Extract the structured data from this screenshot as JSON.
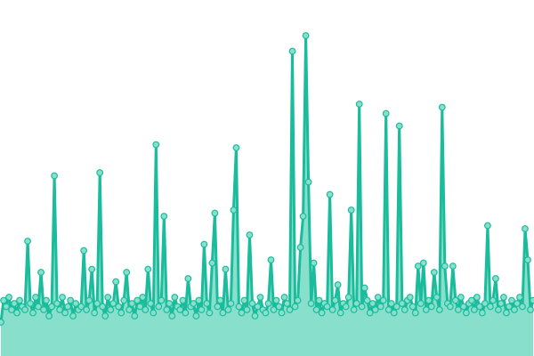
{
  "chart_data": {
    "type": "area",
    "title": "",
    "xlabel": "",
    "ylabel": "",
    "grid": false,
    "axes_visible": false,
    "markers": true,
    "ylim": [
      0,
      110
    ],
    "colors": {
      "line": "#1abc9c",
      "fill": "#88e0cc",
      "marker_fill": "#88e0cc",
      "marker_stroke": "#1abc9c"
    },
    "series": [
      {
        "values": [
          8,
          15,
          13,
          16,
          12,
          14,
          11,
          15,
          13,
          12,
          34,
          14,
          11,
          16,
          13,
          24,
          12,
          15,
          10,
          13,
          55,
          14,
          12,
          16,
          11,
          13,
          15,
          10,
          14,
          12,
          13,
          31,
          12,
          15,
          25,
          11,
          14,
          56,
          13,
          10,
          16,
          12,
          14,
          21,
          13,
          11,
          15,
          24,
          12,
          14,
          10,
          15,
          13,
          16,
          12,
          25,
          14,
          11,
          65,
          13,
          15,
          42,
          12,
          14,
          10,
          16,
          13,
          12,
          15,
          11,
          22,
          13,
          14,
          10,
          15,
          12,
          33,
          14,
          11,
          27,
          43,
          13,
          15,
          11,
          25,
          12,
          14,
          44,
          64,
          13,
          11,
          15,
          12,
          36,
          14,
          10,
          13,
          16,
          12,
          11,
          14,
          28,
          12,
          15,
          13,
          11,
          16,
          14,
          12,
          95,
          13,
          15,
          32,
          42,
          100,
          53,
          14,
          27,
          12,
          15,
          11,
          14,
          13,
          49,
          12,
          15,
          20,
          11,
          14,
          13,
          16,
          44,
          12,
          14,
          78,
          13,
          19,
          15,
          11,
          14,
          12,
          16,
          13,
          15,
          75,
          12,
          14,
          11,
          13,
          71,
          14,
          12,
          15,
          16,
          13,
          11,
          26,
          14,
          27,
          12,
          15,
          13,
          24,
          16,
          12,
          77,
          26,
          14,
          13,
          26,
          15,
          12,
          16,
          13,
          11,
          14,
          15,
          12,
          16,
          13,
          11,
          14,
          39,
          13,
          15,
          22,
          12,
          14,
          16,
          11,
          13,
          15,
          12,
          14,
          16,
          13,
          38,
          28,
          12,
          15
        ]
      }
    ]
  }
}
